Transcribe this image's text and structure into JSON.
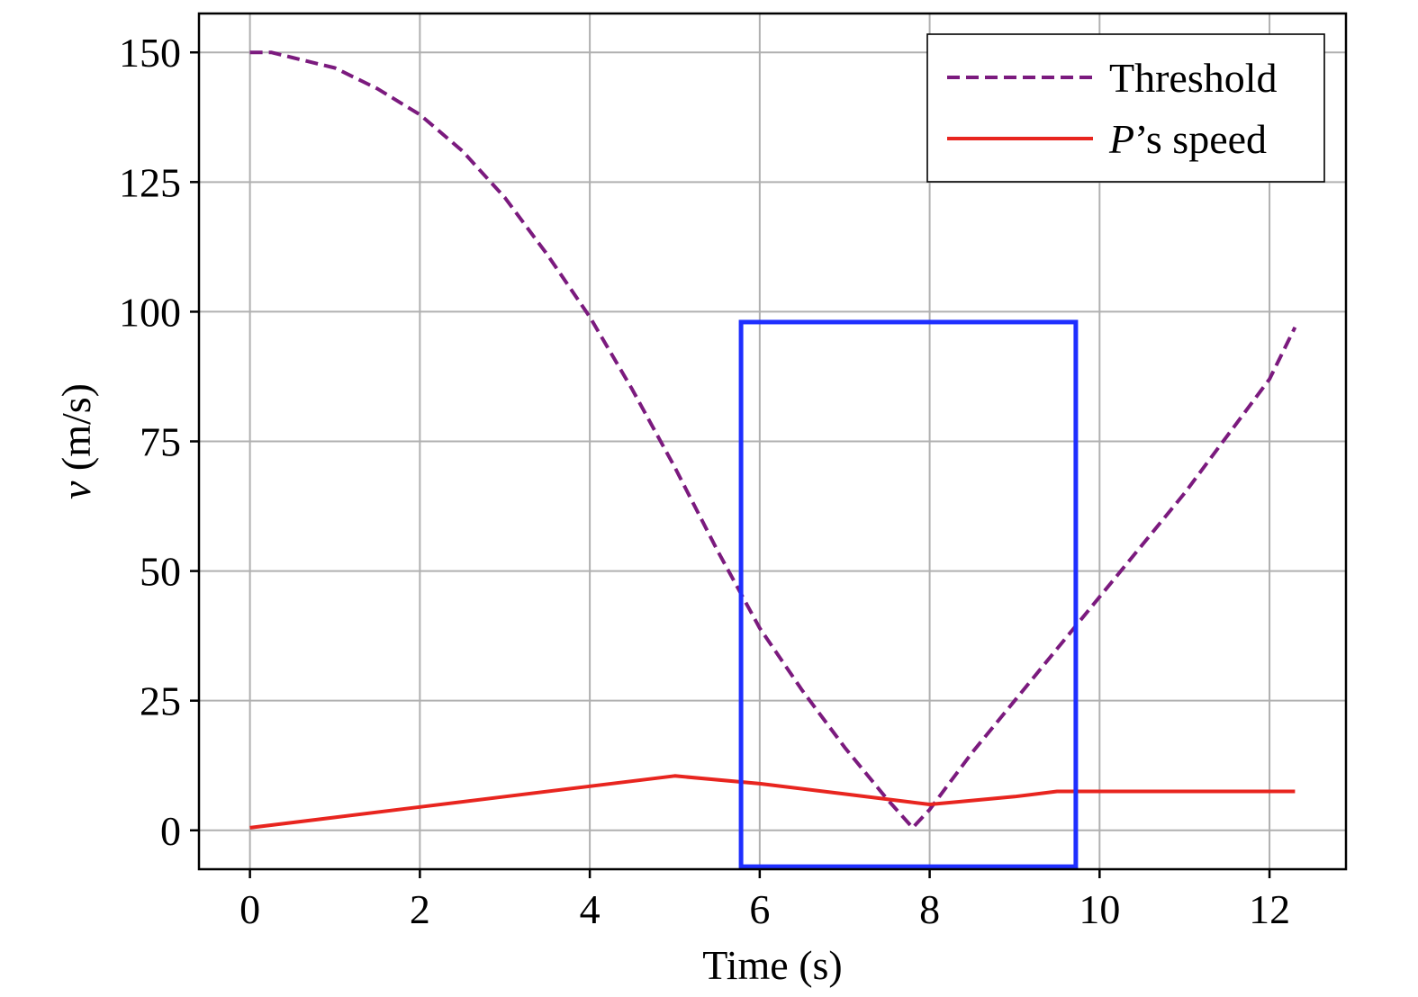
{
  "chart_data": {
    "type": "line",
    "title": "",
    "xlabel": "Time (s)",
    "ylabel": "v (m/s)",
    "ylabel_var": "v",
    "ylabel_unit": " (m/s)",
    "xlim": [
      -0.6,
      12.9
    ],
    "ylim": [
      -7.5,
      157.5
    ],
    "x_ticks": [
      0,
      2,
      4,
      6,
      8,
      10,
      12
    ],
    "y_ticks": [
      0,
      25,
      50,
      75,
      100,
      125,
      150
    ],
    "grid": true,
    "legend_position": "top-right",
    "series": [
      {
        "name": "Threshold",
        "name_italic": "",
        "name_rest": "Threshold",
        "color": "#7b1a7e",
        "style": "dashed",
        "x": [
          0,
          0.25,
          0.5,
          1.0,
          1.5,
          2.0,
          2.5,
          3.0,
          3.5,
          4.0,
          4.5,
          5.0,
          5.5,
          6.0,
          6.5,
          7.0,
          7.5,
          7.8,
          8.0,
          8.5,
          9.0,
          9.5,
          10.0,
          10.5,
          11.0,
          11.5,
          12.0,
          12.3
        ],
        "y": [
          150,
          150,
          149,
          147,
          143,
          138,
          131,
          122,
          111,
          99,
          85,
          70,
          54,
          39,
          27,
          16,
          6,
          0.5,
          4,
          15,
          25,
          35,
          45,
          55,
          65,
          76,
          87,
          97
        ]
      },
      {
        "name": "P’s speed",
        "name_italic": "P",
        "name_rest": "’s speed",
        "color": "#e8251f",
        "style": "solid",
        "x": [
          0,
          1,
          2,
          3,
          4,
          5,
          6,
          7,
          8,
          9,
          9.5,
          10,
          11,
          12,
          12.3
        ],
        "y": [
          0.5,
          2.5,
          4.5,
          6.5,
          8.5,
          10.5,
          9,
          7,
          5,
          6.5,
          7.5,
          7.5,
          7.5,
          7.5,
          7.5
        ]
      }
    ],
    "annotations": [
      {
        "type": "highlight-box",
        "color": "#1f2fff",
        "x_range": [
          5.78,
          9.72
        ],
        "y_range": [
          -7,
          98
        ]
      }
    ]
  }
}
